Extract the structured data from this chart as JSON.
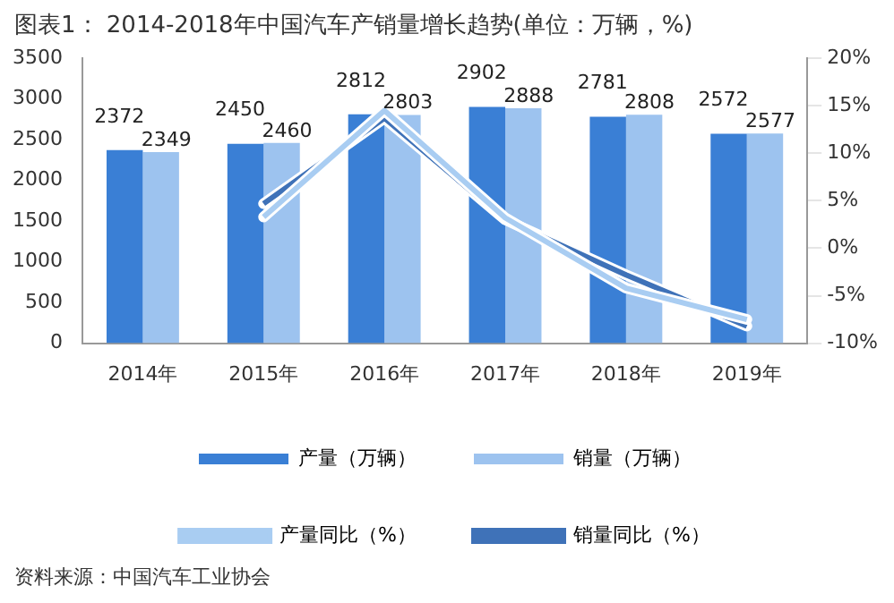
{
  "chart_data": {
    "type": "bar",
    "title": "图表1： 2014-2018年中国汽车产销量增长趋势(单位：万辆，%)",
    "annotations": [
      "资料来源：中国汽车工业协会"
    ],
    "categories": [
      "2014年",
      "2015年",
      "2016年",
      "2017年",
      "2018年",
      "2019年"
    ],
    "series": [
      {
        "name": "产量（万辆）",
        "color": "#3a7fd5",
        "values": [
          2372,
          2450,
          2812,
          2902,
          2781,
          2572
        ],
        "value_labels": [
          "2372",
          "2450",
          "2812",
          "2902",
          "2781",
          "2572"
        ]
      },
      {
        "name": "销量（万辆）",
        "color": "#9dc3ef",
        "values": [
          2349,
          2460,
          2803,
          2888,
          2808,
          2577
        ],
        "value_labels": [
          "2349",
          "2460",
          "2803",
          "2888",
          "2808",
          "2577"
        ]
      },
      {
        "name": "产量同比（%）",
        "type": "line",
        "axis": "y2",
        "color": "#a9cdf2",
        "values": [
          null,
          3.3,
          14.5,
          3.2,
          -4.2,
          -7.5
        ]
      },
      {
        "name": "销量同比（%）",
        "type": "line",
        "axis": "y2",
        "color": "#3f72b8",
        "values": [
          null,
          4.7,
          13.7,
          3.0,
          -2.8,
          -8.2
        ]
      }
    ],
    "ylim": [
      0,
      3500
    ],
    "yticks": [
      0,
      500,
      1000,
      1500,
      2000,
      2500,
      3000,
      3500
    ],
    "y2lim": [
      -10,
      20
    ],
    "y2ticks": [
      {
        "value": -10,
        "label": "-10%"
      },
      {
        "value": -5,
        "label": "-5%"
      },
      {
        "value": 0,
        "label": "0%"
      },
      {
        "value": 5,
        "label": "5%"
      },
      {
        "value": 10,
        "label": "10%"
      },
      {
        "value": 15,
        "label": "15%"
      },
      {
        "value": 20,
        "label": "20%"
      }
    ],
    "legend": "bottom",
    "marker": "none",
    "line_style": "solid"
  }
}
